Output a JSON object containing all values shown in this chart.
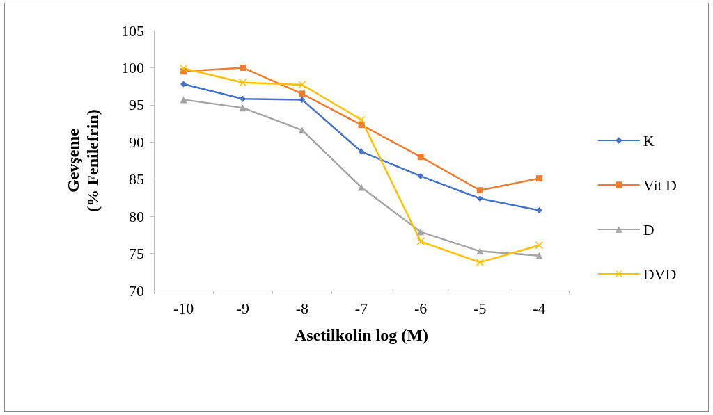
{
  "chart_data": {
    "type": "line",
    "xlabel": "Asetilkolin log (M)",
    "ylabel": "Gevşeme\n(% Fenilefrin)",
    "categories": [
      "-10",
      "-9",
      "-8",
      "-7",
      "-6",
      "-5",
      "-4"
    ],
    "ylim": [
      70,
      105
    ],
    "yticks": [
      70,
      75,
      80,
      85,
      90,
      95,
      100,
      105
    ],
    "grid": false,
    "legend": "right",
    "series": [
      {
        "name": "K",
        "color": "#4472c4",
        "marker": "diamond",
        "values": [
          97.8,
          95.8,
          95.7,
          88.7,
          85.4,
          82.4,
          80.8
        ]
      },
      {
        "name": "Vit D",
        "color": "#ed7d31",
        "marker": "square",
        "values": [
          99.5,
          100,
          96.5,
          92.3,
          88,
          83.5,
          85.1
        ]
      },
      {
        "name": "D",
        "color": "#a5a5a5",
        "marker": "triangle",
        "values": [
          95.7,
          94.6,
          91.6,
          83.9,
          77.9,
          75.3,
          74.7
        ]
      },
      {
        "name": "DVD",
        "color": "#ffc000",
        "marker": "cross",
        "values": [
          99.9,
          98,
          97.7,
          93,
          76.6,
          73.8,
          76.1
        ]
      }
    ]
  }
}
